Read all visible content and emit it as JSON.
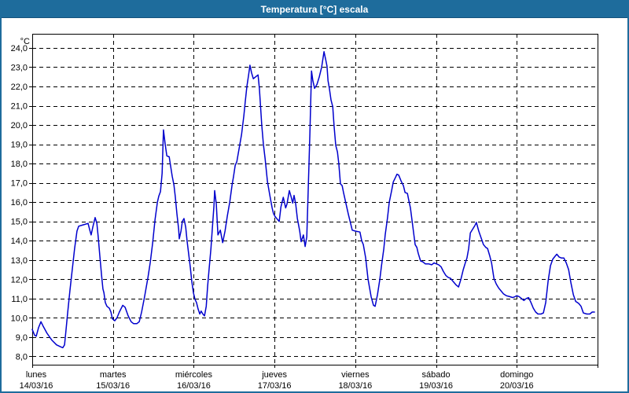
{
  "window": {
    "title": "Temperatura [°C] escala"
  },
  "colors": {
    "titlebar_bg": "#1e6c9c",
    "titlebar_text": "#ffffff",
    "frame_border": "#1e6c9c",
    "plot_border": "#000000",
    "grid": "#000000",
    "line": "#0000cd",
    "background": "#ffffff",
    "label_text": "#000000"
  },
  "chart_data": {
    "type": "line",
    "title": "Temperatura [°C] escala",
    "y_unit_label": "°C",
    "grid": "dashed",
    "legend": "none",
    "ylim": [
      7.57,
      24.73
    ],
    "y_ticks": [
      {
        "value": 24,
        "label": "24,0"
      },
      {
        "value": 23,
        "label": "23,0"
      },
      {
        "value": 22,
        "label": "22,0"
      },
      {
        "value": 21,
        "label": "21,0"
      },
      {
        "value": 20,
        "label": "20,0"
      },
      {
        "value": 19,
        "label": "19,0"
      },
      {
        "value": 18,
        "label": "18,0"
      },
      {
        "value": 17,
        "label": "17,0"
      },
      {
        "value": 16,
        "label": "16,0"
      },
      {
        "value": 15,
        "label": "15,0"
      },
      {
        "value": 14,
        "label": "14,0"
      },
      {
        "value": 13,
        "label": "13,0"
      },
      {
        "value": 12,
        "label": "12,0"
      },
      {
        "value": 11,
        "label": "11,0"
      },
      {
        "value": 10,
        "label": "10,0"
      },
      {
        "value": 9,
        "label": "9,0"
      },
      {
        "value": 8,
        "label": "8,0"
      }
    ],
    "x_range_hours": [
      0,
      168
    ],
    "x_day_width_hours": 24,
    "x_days": [
      {
        "name": "lunes",
        "date": "14/03/16"
      },
      {
        "name": "martes",
        "date": "15/03/16"
      },
      {
        "name": "miércoles",
        "date": "16/03/16"
      },
      {
        "name": "jueves",
        "date": "17/03/16"
      },
      {
        "name": "viernes",
        "date": "18/03/16"
      },
      {
        "name": "sábado",
        "date": "19/03/16"
      },
      {
        "name": "domingo",
        "date": "20/03/16"
      }
    ],
    "series": [
      {
        "name": "Temperatura",
        "color": "#0000cd",
        "points": [
          [
            0,
            9.4
          ],
          [
            0.7,
            9.1
          ],
          [
            1.2,
            9.05
          ],
          [
            1.9,
            9.5
          ],
          [
            2.6,
            9.8
          ],
          [
            3.3,
            9.55
          ],
          [
            4.4,
            9.2
          ],
          [
            5.8,
            8.85
          ],
          [
            7.2,
            8.6
          ],
          [
            8.4,
            8.5
          ],
          [
            9.1,
            8.45
          ],
          [
            9.6,
            8.6
          ],
          [
            10,
            9.3
          ],
          [
            10.5,
            10.2
          ],
          [
            11.2,
            11.4
          ],
          [
            11.9,
            12.5
          ],
          [
            12.6,
            13.6
          ],
          [
            13.3,
            14.5
          ],
          [
            13.8,
            14.75
          ],
          [
            14.7,
            14.8
          ],
          [
            15.7,
            14.85
          ],
          [
            16.6,
            14.9
          ],
          [
            17.1,
            14.55
          ],
          [
            17.5,
            14.3
          ],
          [
            18,
            14.7
          ],
          [
            18.7,
            15.2
          ],
          [
            19.2,
            14.9
          ],
          [
            19.6,
            14.2
          ],
          [
            20.1,
            13.2
          ],
          [
            20.6,
            12.2
          ],
          [
            21,
            11.5
          ],
          [
            21.3,
            11.3
          ],
          [
            21.7,
            10.8
          ],
          [
            22.2,
            10.6
          ],
          [
            22.9,
            10.5
          ],
          [
            23.4,
            10.3
          ],
          [
            23.8,
            9.95
          ],
          [
            24.5,
            9.85
          ],
          [
            25.2,
            10
          ],
          [
            25.9,
            10.3
          ],
          [
            26.9,
            10.65
          ],
          [
            27.6,
            10.55
          ],
          [
            28.5,
            10.1
          ],
          [
            29.4,
            9.8
          ],
          [
            30.1,
            9.7
          ],
          [
            31.1,
            9.7
          ],
          [
            31.8,
            9.8
          ],
          [
            32.5,
            10.3
          ],
          [
            33.4,
            11.1
          ],
          [
            34.4,
            12.1
          ],
          [
            35.1,
            12.9
          ],
          [
            35.8,
            13.9
          ],
          [
            36.5,
            15.1
          ],
          [
            37.2,
            16
          ],
          [
            37.6,
            16.3
          ],
          [
            38.1,
            16.55
          ],
          [
            38.6,
            17.5
          ],
          [
            39,
            19.75
          ],
          [
            39.5,
            19
          ],
          [
            40,
            18.4
          ],
          [
            40.7,
            18.35
          ],
          [
            41.1,
            17.9
          ],
          [
            41.6,
            17.35
          ],
          [
            42.1,
            16.9
          ],
          [
            42.5,
            16.3
          ],
          [
            43,
            15.4
          ],
          [
            43.5,
            14.6
          ],
          [
            43.7,
            14.1
          ],
          [
            44.2,
            14.5
          ],
          [
            44.6,
            15
          ],
          [
            45.1,
            15.15
          ],
          [
            45.6,
            14.7
          ],
          [
            46,
            14
          ],
          [
            46.5,
            13.3
          ],
          [
            47,
            12.6
          ],
          [
            47.4,
            11.9
          ],
          [
            47.9,
            11.3
          ],
          [
            48.4,
            10.95
          ],
          [
            48.8,
            10.8
          ],
          [
            49.3,
            10.45
          ],
          [
            49.8,
            10.2
          ],
          [
            50.2,
            10.35
          ],
          [
            50.7,
            10.2
          ],
          [
            51.2,
            10.1
          ],
          [
            51.7,
            10.6
          ],
          [
            52.1,
            11.6
          ],
          [
            52.6,
            12.6
          ],
          [
            53.1,
            13.6
          ],
          [
            53.5,
            14.6
          ],
          [
            54,
            15.8
          ],
          [
            54.2,
            16.6
          ],
          [
            54.7,
            15.9
          ],
          [
            55.2,
            14.3
          ],
          [
            55.9,
            14.55
          ],
          [
            56.6,
            13.9
          ],
          [
            57.3,
            14.5
          ],
          [
            58,
            15.3
          ],
          [
            58.7,
            16
          ],
          [
            59.4,
            16.9
          ],
          [
            59.8,
            17.3
          ],
          [
            60.3,
            17.9
          ],
          [
            60.8,
            18.1
          ],
          [
            61.5,
            18.8
          ],
          [
            62.2,
            19.5
          ],
          [
            62.9,
            20.5
          ],
          [
            63.3,
            21.2
          ],
          [
            63.8,
            22
          ],
          [
            64.3,
            22.6
          ],
          [
            64.7,
            23.1
          ],
          [
            65.2,
            22.7
          ],
          [
            65.7,
            22.4
          ],
          [
            66.4,
            22.5
          ],
          [
            67.1,
            22.6
          ],
          [
            67.5,
            21.9
          ],
          [
            68.2,
            20
          ],
          [
            68.7,
            19
          ],
          [
            69.2,
            18.25
          ],
          [
            69.9,
            17.05
          ],
          [
            70.6,
            16.35
          ],
          [
            71.3,
            15.7
          ],
          [
            71.7,
            15.4
          ],
          [
            72.2,
            15.25
          ],
          [
            72.9,
            15.1
          ],
          [
            73.4,
            15
          ],
          [
            73.9,
            15.75
          ],
          [
            74.6,
            16.25
          ],
          [
            75.3,
            15.7
          ],
          [
            75.7,
            15.9
          ],
          [
            76.4,
            16.6
          ],
          [
            76.9,
            16.3
          ],
          [
            77.4,
            15.95
          ],
          [
            77.8,
            16.35
          ],
          [
            78.3,
            15.9
          ],
          [
            78.8,
            15.15
          ],
          [
            79.5,
            14.5
          ],
          [
            79.9,
            13.95
          ],
          [
            80.6,
            14.3
          ],
          [
            81.1,
            13.7
          ],
          [
            81.6,
            14.2
          ],
          [
            82,
            16.5
          ],
          [
            82.5,
            19.5
          ],
          [
            83,
            22.8
          ],
          [
            83.4,
            22.3
          ],
          [
            83.9,
            21.9
          ],
          [
            84.6,
            22.1
          ],
          [
            85.3,
            22.5
          ],
          [
            86,
            23
          ],
          [
            86.7,
            23.8
          ],
          [
            87.2,
            23.4
          ],
          [
            87.6,
            23.05
          ],
          [
            87.9,
            22.3
          ],
          [
            88.3,
            21.9
          ],
          [
            88.8,
            21.3
          ],
          [
            89.3,
            20.95
          ],
          [
            89.7,
            19.95
          ],
          [
            90.2,
            18.95
          ],
          [
            90.7,
            18.6
          ],
          [
            91.1,
            18
          ],
          [
            91.6,
            16.95
          ],
          [
            92.1,
            16.85
          ],
          [
            92.5,
            16.5
          ],
          [
            93.2,
            15.95
          ],
          [
            93.9,
            15.4
          ],
          [
            94.6,
            14.9
          ],
          [
            95.1,
            14.55
          ],
          [
            96,
            14.5
          ],
          [
            97.4,
            14.45
          ],
          [
            97.9,
            14
          ],
          [
            98.4,
            13.8
          ],
          [
            99.1,
            13.1
          ],
          [
            99.8,
            12
          ],
          [
            100.7,
            11.1
          ],
          [
            101.4,
            10.65
          ],
          [
            101.9,
            10.6
          ],
          [
            102.6,
            11.2
          ],
          [
            103.3,
            12
          ],
          [
            103.8,
            12.7
          ],
          [
            104.5,
            13.6
          ],
          [
            104.9,
            14.3
          ],
          [
            105.6,
            15.2
          ],
          [
            106.1,
            16
          ],
          [
            106.8,
            16.6
          ],
          [
            107.3,
            17.05
          ],
          [
            108,
            17.3
          ],
          [
            108.4,
            17.45
          ],
          [
            108.9,
            17.4
          ],
          [
            109.6,
            17.1
          ],
          [
            110.3,
            16.85
          ],
          [
            110.8,
            16.5
          ],
          [
            111.5,
            16.45
          ],
          [
            111.9,
            16.1
          ],
          [
            112.4,
            15.7
          ],
          [
            113.1,
            14.75
          ],
          [
            113.8,
            13.8
          ],
          [
            114.3,
            13.65
          ],
          [
            114.7,
            13.35
          ],
          [
            115.4,
            12.95
          ],
          [
            116.1,
            12.9
          ],
          [
            116.8,
            12.8
          ],
          [
            117.8,
            12.8
          ],
          [
            118.7,
            12.75
          ],
          [
            119.4,
            12.85
          ],
          [
            120.1,
            12.8
          ],
          [
            120.8,
            12.75
          ],
          [
            121.5,
            12.65
          ],
          [
            122.2,
            12.4
          ],
          [
            122.9,
            12.2
          ],
          [
            123.6,
            12.1
          ],
          [
            124.3,
            12.05
          ],
          [
            125,
            11.9
          ],
          [
            126,
            11.7
          ],
          [
            126.7,
            11.6
          ],
          [
            127.4,
            12
          ],
          [
            128.1,
            12.5
          ],
          [
            128.8,
            12.9
          ],
          [
            129.2,
            13.1
          ],
          [
            129.7,
            13.6
          ],
          [
            130.2,
            14.4
          ],
          [
            130.9,
            14.6
          ],
          [
            131.6,
            14.8
          ],
          [
            132,
            14.95
          ],
          [
            132.7,
            14.5
          ],
          [
            133.4,
            14.15
          ],
          [
            134.1,
            13.8
          ],
          [
            134.8,
            13.65
          ],
          [
            135.3,
            13.6
          ],
          [
            136,
            13.2
          ],
          [
            136.5,
            12.85
          ],
          [
            137.2,
            12.05
          ],
          [
            137.9,
            11.75
          ],
          [
            138.6,
            11.55
          ],
          [
            139.3,
            11.4
          ],
          [
            140,
            11.25
          ],
          [
            140.9,
            11.15
          ],
          [
            141.9,
            11.1
          ],
          [
            142.8,
            11.05
          ],
          [
            143.5,
            11.1
          ],
          [
            144,
            11.15
          ],
          [
            144.7,
            11.1
          ],
          [
            145.4,
            11
          ],
          [
            146.1,
            10.9
          ],
          [
            146.8,
            11
          ],
          [
            147.5,
            11.05
          ],
          [
            148.2,
            10.8
          ],
          [
            148.9,
            10.5
          ],
          [
            149.6,
            10.3
          ],
          [
            150.3,
            10.2
          ],
          [
            151.2,
            10.2
          ],
          [
            151.9,
            10.25
          ],
          [
            152.6,
            10.8
          ],
          [
            153.3,
            11.9
          ],
          [
            154,
            12.7
          ],
          [
            154.7,
            13.05
          ],
          [
            155.4,
            13.2
          ],
          [
            155.9,
            13.3
          ],
          [
            156.6,
            13.15
          ],
          [
            157.3,
            13.1
          ],
          [
            158,
            13.1
          ],
          [
            158.7,
            12.85
          ],
          [
            159.4,
            12.5
          ],
          [
            160.1,
            11.8
          ],
          [
            160.8,
            11.2
          ],
          [
            161.5,
            10.85
          ],
          [
            162.4,
            10.75
          ],
          [
            163.1,
            10.6
          ],
          [
            163.8,
            10.25
          ],
          [
            164.8,
            10.2
          ],
          [
            165.7,
            10.2
          ],
          [
            166.4,
            10.3
          ],
          [
            167.1,
            10.3
          ]
        ]
      }
    ]
  }
}
